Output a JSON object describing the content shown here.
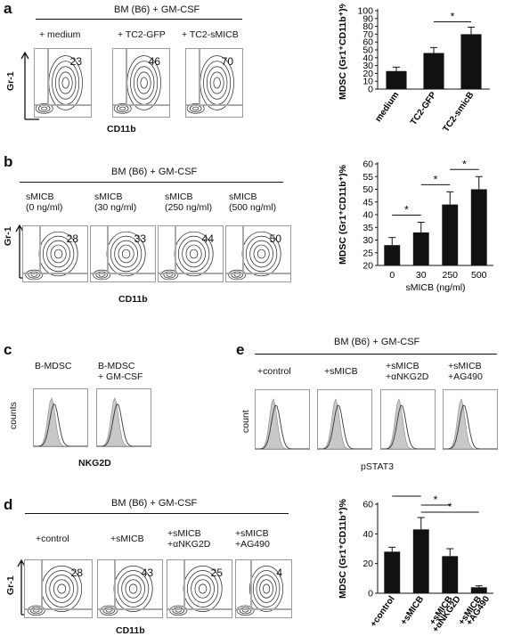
{
  "panel_a": {
    "label": "a",
    "header": "BM (B6) + GM-CSF",
    "conditions": [
      "+ medium",
      "+ TC2-GFP",
      "+ TC2-sMICB"
    ],
    "percentages": [
      "23",
      "46",
      "70"
    ],
    "y_label": "Gr-1",
    "x_label": "CD11b"
  },
  "panel_b": {
    "label": "b",
    "header": "BM (B6) + GM-CSF",
    "conditions": [
      [
        "sMICB",
        "(0 ng/ml)"
      ],
      [
        "sMICB",
        "(30 ng/ml)"
      ],
      [
        "sMICB",
        "(250 ng/ml)"
      ],
      [
        "sMICB",
        "(500 ng/ml)"
      ]
    ],
    "percentages": [
      "28",
      "33",
      "44",
      "50"
    ],
    "y_label": "Gr-1",
    "x_label": "CD11b"
  },
  "panel_c": {
    "label": "c",
    "conditions": [
      [
        "B-MDSC"
      ],
      [
        "B-MDSC",
        "+ GM-CSF"
      ]
    ],
    "y_label": "counts",
    "x_label": "NKG2D"
  },
  "panel_d": {
    "label": "d",
    "header": "BM (B6) + GM-CSF",
    "conditions": [
      [
        "+control"
      ],
      [
        "+sMICB"
      ],
      [
        "+sMICB",
        "+αNKG2D"
      ],
      [
        "+sMICB",
        "+AG490"
      ]
    ],
    "percentages": [
      "28",
      "43",
      "25",
      "4"
    ],
    "y_label": "Gr-1",
    "x_label": "CD11b"
  },
  "panel_e": {
    "label": "e",
    "header": "BM (B6) + GM-CSF",
    "conditions": [
      [
        "+control"
      ],
      [
        "+sMICB"
      ],
      [
        "+sMICB",
        "+αNKG2D"
      ],
      [
        "+sMICB",
        "+AG490"
      ]
    ],
    "y_label": "count",
    "x_label": "pSTAT3"
  },
  "chart_data": [
    {
      "id": "a",
      "type": "bar",
      "categories": [
        "medium",
        "TC2-GFP",
        "TC2-smicB"
      ],
      "values": [
        23,
        46,
        70
      ],
      "errors": [
        5,
        7,
        9
      ],
      "ylabel": "MDSC (Gr1⁺CD11b⁺)%",
      "ylim": [
        0,
        100
      ],
      "yticks": [
        "0",
        "10",
        "20",
        "30",
        "40",
        "50",
        "60",
        "70",
        "80",
        "90",
        "100"
      ],
      "significance": [
        {
          "from": 1,
          "to": 2,
          "label": "*"
        }
      ]
    },
    {
      "id": "b",
      "type": "bar",
      "categories": [
        "0",
        "30",
        "250",
        "500"
      ],
      "values": [
        28,
        33,
        44,
        50
      ],
      "errors": [
        3,
        4,
        5,
        5
      ],
      "xlabel": "sMICB (ng/ml)",
      "ylabel": "MDSC (Gr1⁺CD11b⁺)%",
      "ylim": [
        20,
        60
      ],
      "yticks": [
        "20",
        "25",
        "30",
        "35",
        "40",
        "45",
        "50",
        "55",
        "60"
      ],
      "significance": [
        {
          "from": 0,
          "to": 1,
          "label": "*"
        },
        {
          "from": 1,
          "to": 2,
          "label": "*"
        },
        {
          "from": 2,
          "to": 3,
          "label": "*"
        }
      ]
    },
    {
      "id": "d",
      "type": "bar",
      "categories": [
        "+control",
        "+sMICB",
        "+sMICB +αNKG2D",
        "+sMICB +AG490"
      ],
      "values": [
        28,
        43,
        25,
        4
      ],
      "errors": [
        3,
        8,
        5,
        1
      ],
      "ylabel": "MDSC (Gr1⁺CD11b⁺)%",
      "ylim": [
        0,
        60
      ],
      "yticks": [
        "0",
        "20",
        "40",
        "60"
      ],
      "significance": [
        {
          "from": 0,
          "to": 1,
          "label": "*"
        },
        {
          "from": 1,
          "to": 2,
          "label": "*"
        },
        {
          "from": 1,
          "to": 3,
          "label": "*"
        }
      ]
    }
  ]
}
